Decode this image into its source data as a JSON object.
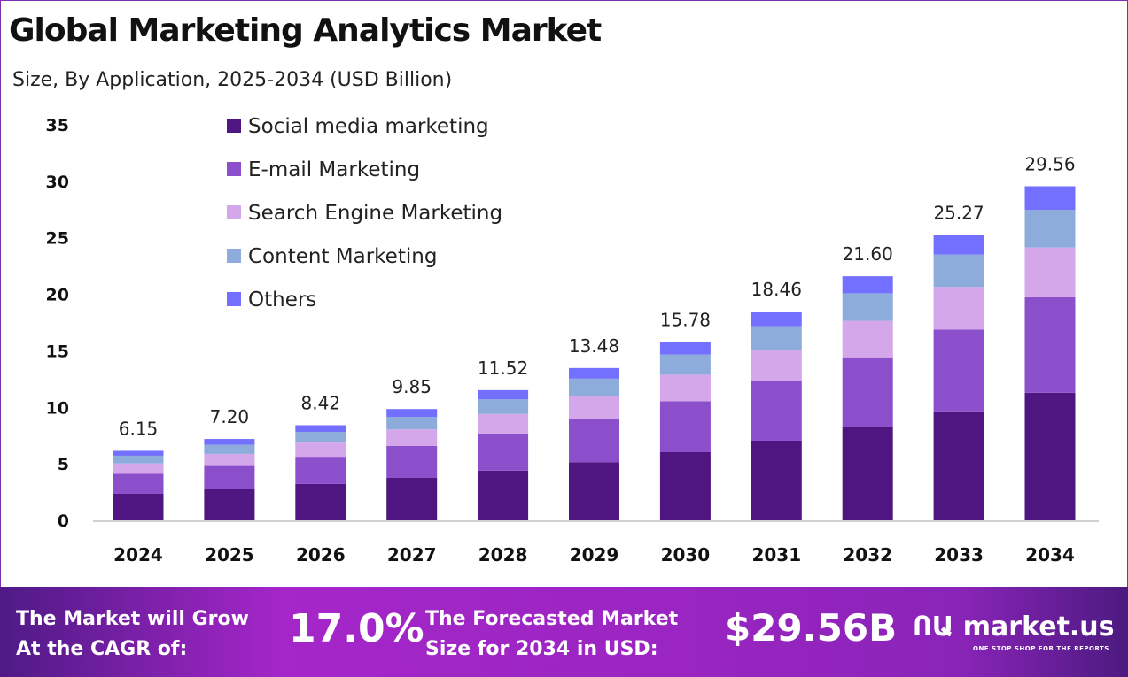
{
  "chart_data": {
    "type": "bar",
    "stacked": true,
    "title": "Global Marketing Analytics Market",
    "subtitle": "Size, By Application, 2025-2034 (USD Billion)",
    "categories": [
      "2024",
      "2025",
      "2026",
      "2027",
      "2028",
      "2029",
      "2030",
      "2031",
      "2032",
      "2033",
      "2034"
    ],
    "totals": [
      "6.15",
      "7.20",
      "8.42",
      "9.85",
      "11.52",
      "13.48",
      "15.78",
      "18.46",
      "21.60",
      "25.27",
      "29.56"
    ],
    "series": [
      {
        "name": "Social media marketing",
        "color": "#4f1682",
        "values": [
          2.35,
          2.75,
          3.22,
          3.76,
          4.4,
          5.15,
          6.03,
          7.05,
          8.25,
          9.65,
          11.29
        ]
      },
      {
        "name": "E-mail Marketing",
        "color": "#8c4fcc",
        "values": [
          1.76,
          2.06,
          2.41,
          2.82,
          3.29,
          3.86,
          4.51,
          5.28,
          6.18,
          7.23,
          8.45
        ]
      },
      {
        "name": "Search Engine Marketing",
        "color": "#d4a6ea",
        "values": [
          0.92,
          1.07,
          1.25,
          1.47,
          1.72,
          2.01,
          2.35,
          2.75,
          3.22,
          3.77,
          4.4
        ]
      },
      {
        "name": "Content Marketing",
        "color": "#8eacdb",
        "values": [
          0.69,
          0.81,
          0.95,
          1.11,
          1.3,
          1.52,
          1.78,
          2.09,
          2.44,
          2.86,
          3.34
        ]
      },
      {
        "name": "Others",
        "color": "#7470ff",
        "values": [
          0.43,
          0.51,
          0.59,
          0.69,
          0.81,
          0.94,
          1.11,
          1.29,
          1.51,
          1.76,
          2.08
        ]
      }
    ],
    "yticks": [
      "0",
      "5",
      "10",
      "15",
      "20",
      "25",
      "30",
      "35"
    ],
    "ylim": [
      0,
      35
    ],
    "grid": false,
    "legend": "top-left"
  },
  "banner": {
    "cagr_text_1": "The Market will Grow",
    "cagr_text_2": "At the CAGR of:",
    "cagr_value": "17.0%",
    "forecast_text_1": "The Forecasted Market",
    "forecast_text_2": "Size for 2034 in USD:",
    "forecast_value": "$29.56B",
    "logo_text": "market.us",
    "logo_tagline": "ONE STOP SHOP FOR THE REPORTS"
  }
}
